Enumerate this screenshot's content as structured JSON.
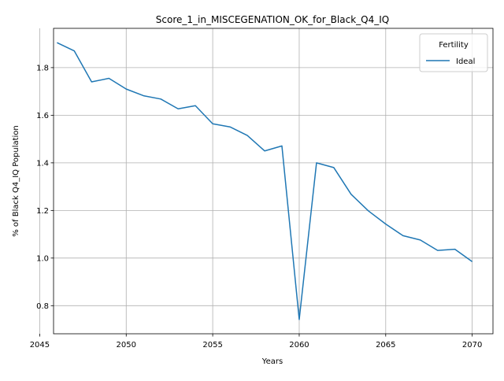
{
  "chart_data": {
    "type": "line",
    "title": "Score_1_in_MISCEGENATION_OK_for_Black_Q4_IQ",
    "xlabel": "Years",
    "ylabel": "% of Black Q4_IQ Population",
    "xlim": [
      2045.8,
      2071.2
    ],
    "ylim": [
      0.682,
      1.965
    ],
    "x_ticks": [
      2045,
      2050,
      2055,
      2060,
      2065,
      2070
    ],
    "y_ticks": [
      0.8,
      1.0,
      1.2,
      1.4,
      1.6,
      1.8
    ],
    "grid": true,
    "legend": {
      "title": "Fertility",
      "placement": "upper right"
    },
    "series": [
      {
        "name": "Ideal",
        "color": "#1f77b4",
        "x": [
          2046,
          2047,
          2048,
          2049,
          2050,
          2051,
          2052,
          2053,
          2054,
          2055,
          2056,
          2057,
          2058,
          2059,
          2060,
          2061,
          2062,
          2063,
          2064,
          2065,
          2066,
          2067,
          2068,
          2069,
          2070
        ],
        "y": [
          1.905,
          1.87,
          1.74,
          1.755,
          1.71,
          1.682,
          1.668,
          1.627,
          1.64,
          1.564,
          1.551,
          1.515,
          1.45,
          1.471,
          0.742,
          1.4,
          1.38,
          1.268,
          1.198,
          1.143,
          1.094,
          1.076,
          1.032,
          1.037,
          0.985
        ]
      }
    ]
  }
}
